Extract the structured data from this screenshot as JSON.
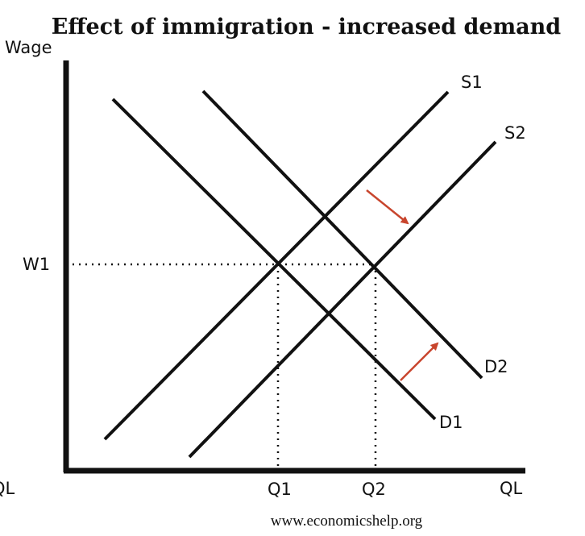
{
  "title": "Effect of immigration - increased demand",
  "axes": {
    "y_label": "Wage",
    "x_label": "QL",
    "x_label_left_fragment": "QL"
  },
  "curves": {
    "s1": "S1",
    "s2": "S2",
    "d1": "D1",
    "d2": "D2"
  },
  "markers": {
    "wage": "W1",
    "q1": "Q1",
    "q2": "Q2"
  },
  "credit": "www.economicshelp.org",
  "colors": {
    "lines": "#111111",
    "arrows": "#c8452d"
  }
}
